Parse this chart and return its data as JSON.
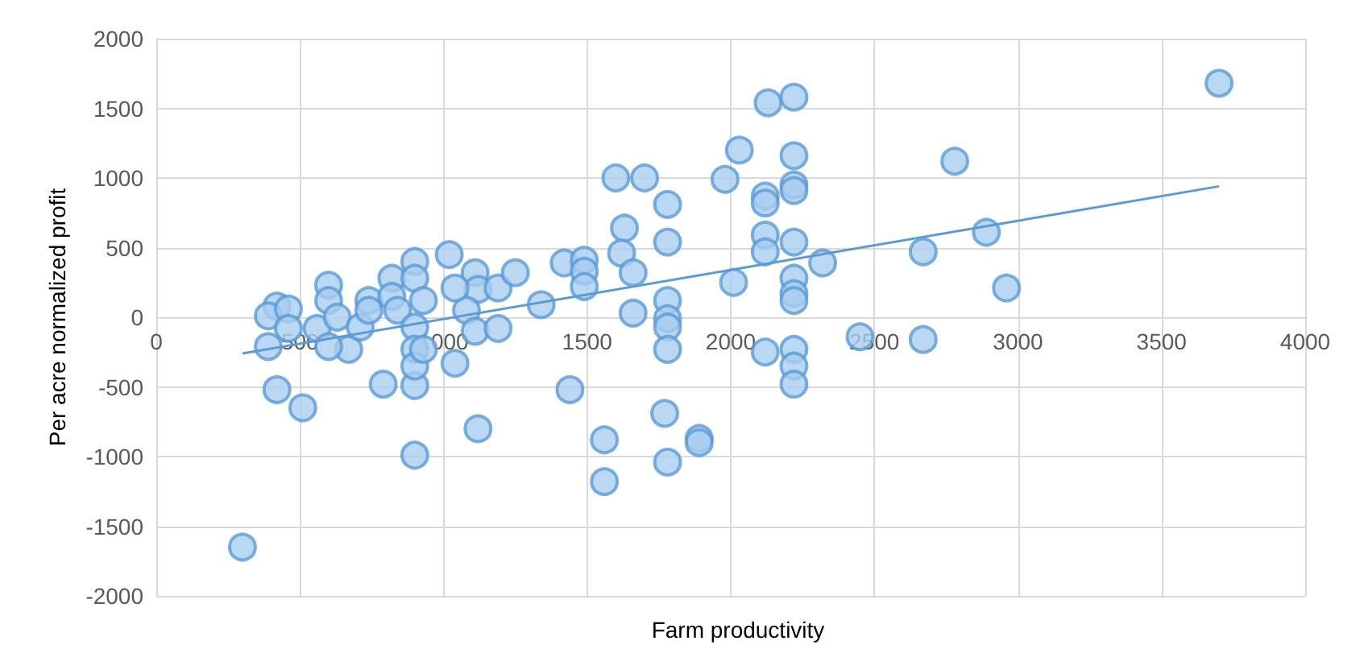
{
  "chart_data": {
    "type": "scatter",
    "xlabel": "Farm productivity",
    "ylabel": "Per acre normalized profit",
    "xlim": [
      0,
      4000
    ],
    "xticks": [
      0,
      500,
      1000,
      1500,
      2000,
      2500,
      3000,
      3500,
      4000
    ],
    "ylim": [
      -2000,
      2000
    ],
    "yticks": [
      -2000,
      -1500,
      -1000,
      -500,
      0,
      500,
      1000,
      1500,
      2000
    ],
    "grid": true,
    "marker": "circle",
    "series": [
      {
        "color": "#a9cdf0",
        "x": [
          300,
          420,
          510,
          790,
          900,
          390,
          420,
          390,
          460,
          460,
          560,
          600,
          600,
          630,
          670,
          710,
          740,
          740,
          820,
          820,
          840,
          900,
          900,
          930,
          900,
          900,
          900,
          930,
          1040,
          600,
          1020,
          1110,
          1120,
          1080,
          1110,
          1190,
          1190,
          1250,
          1040,
          1120,
          900,
          1340,
          1420,
          1490,
          1490,
          1490,
          1440,
          1560,
          1560,
          1600,
          1700,
          1630,
          1620,
          1660,
          1660,
          1780,
          1780,
          1780,
          1780,
          1780,
          1780,
          1770,
          1780,
          2130,
          2220,
          2030,
          1980,
          2220,
          2220,
          2220,
          2120,
          2120,
          2120,
          2120,
          2220,
          2320,
          2010,
          2220,
          2220,
          2220,
          2120,
          2220,
          2220,
          2220,
          2450,
          2670,
          2670,
          2780,
          2890,
          2960,
          3700,
          1890,
          1890
        ],
        "values": [
          -1650,
          -520,
          -650,
          -480,
          -490,
          -210,
          80,
          10,
          60,
          -80,
          -80,
          230,
          120,
          0,
          -230,
          -70,
          120,
          50,
          280,
          150,
          50,
          400,
          280,
          120,
          -70,
          -230,
          -350,
          -230,
          -330,
          -210,
          450,
          320,
          200,
          50,
          -100,
          210,
          -80,
          320,
          210,
          -800,
          -990,
          90,
          390,
          410,
          330,
          220,
          -520,
          -880,
          -1180,
          1000,
          1000,
          640,
          460,
          320,
          30,
          810,
          540,
          120,
          -10,
          -70,
          -230,
          -690,
          -1040,
          1540,
          1580,
          1200,
          990,
          1160,
          950,
          910,
          870,
          820,
          590,
          470,
          540,
          390,
          250,
          280,
          170,
          120,
          -250,
          -230,
          -350,
          -480,
          -140,
          -160,
          470,
          1120,
          610,
          210,
          1680,
          -870,
          -900
        ]
      },
      {
        "type": "line",
        "color": "#5b9bd5",
        "x": [
          300,
          3700
        ],
        "values": [
          -260,
          940
        ],
        "marker": "none"
      }
    ]
  }
}
